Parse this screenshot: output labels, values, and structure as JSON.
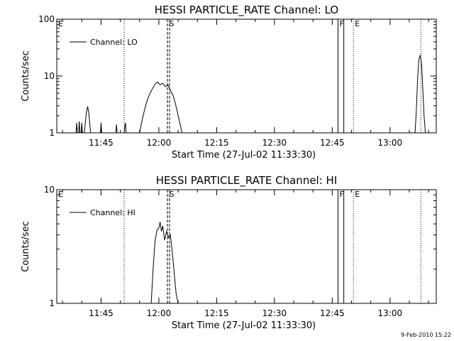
{
  "footer": {
    "timestamp": "9-Feb-2010 15:22"
  },
  "chart_data": [
    {
      "type": "line",
      "title": "HESSI PARTICLE_RATE Channel: LO",
      "xlabel": "Start Time (27-Jul-02 11:33:30)",
      "ylabel": "Counts/sec",
      "yscale": "log",
      "xlim": [
        "11:33:30",
        "13:12:00"
      ],
      "ylim": [
        1,
        100
      ],
      "xticks": [
        "11:45",
        "12:00",
        "12:15",
        "12:30",
        "12:45",
        "13:00"
      ],
      "yticks": [
        "1",
        "10",
        "100"
      ],
      "legend": {
        "label": "Channel: LO",
        "position": "top-left"
      },
      "markers": [
        {
          "label": "E",
          "time": "11:33:30",
          "style": "dotted"
        },
        {
          "label": "",
          "time": "11:51:00",
          "style": "dotted"
        },
        {
          "label": "S",
          "time": "12:02:30",
          "style": "dashed"
        },
        {
          "label": "F",
          "time": "12:46:30",
          "style": "solid"
        },
        {
          "label": "",
          "time": "12:48:00",
          "style": "solid"
        },
        {
          "label": "E",
          "time": "12:50:30",
          "style": "dotted"
        },
        {
          "label": "",
          "time": "13:08:00",
          "style": "dotted"
        }
      ],
      "series": [
        {
          "name": "Channel: LO",
          "values": [
            [
              "11:38:30",
              1
            ],
            [
              "11:38:40",
              1.5
            ],
            [
              "11:38:50",
              1
            ],
            [
              "11:39:10",
              1
            ],
            [
              "11:39:20",
              1.6
            ],
            [
              "11:39:30",
              1
            ],
            [
              "11:39:50",
              1
            ],
            [
              "11:40:00",
              1.5
            ],
            [
              "11:40:10",
              1
            ],
            [
              "11:40:40",
              1
            ],
            [
              "11:41:10",
              2.2
            ],
            [
              "11:41:30",
              2.9
            ],
            [
              "11:41:50",
              2.2
            ],
            [
              "11:42:10",
              1.2
            ],
            [
              "11:42:20",
              1
            ],
            [
              "11:44:50",
              1
            ],
            [
              "11:45:00",
              1.5
            ],
            [
              "11:45:10",
              1
            ],
            [
              "11:48:50",
              1
            ],
            [
              "11:49:00",
              1.4
            ],
            [
              "11:49:10",
              1
            ],
            [
              "11:51:00",
              1
            ],
            [
              "11:51:10",
              1.3
            ],
            [
              "11:51:20",
              1.5
            ],
            [
              "11:51:30",
              1
            ],
            [
              "11:55:00",
              1
            ],
            [
              "11:55:40",
              1.7
            ],
            [
              "11:56:20",
              2.6
            ],
            [
              "11:57:00",
              3.8
            ],
            [
              "11:57:40",
              4.9
            ],
            [
              "11:58:20",
              6.0
            ],
            [
              "11:59:00",
              7.2
            ],
            [
              "11:59:40",
              7.8
            ],
            [
              "12:00:20",
              7.0
            ],
            [
              "12:01:00",
              7.5
            ],
            [
              "12:01:40",
              6.5
            ],
            [
              "12:02:20",
              7.0
            ],
            [
              "12:03:00",
              5.6
            ],
            [
              "12:03:40",
              4.6
            ],
            [
              "12:04:20",
              3.2
            ],
            [
              "12:05:00",
              2.0
            ],
            [
              "12:05:40",
              1.3
            ],
            [
              "12:06:00",
              1
            ],
            [
              "13:06:30",
              1
            ],
            [
              "13:06:50",
              2.5
            ],
            [
              "13:07:10",
              9.0
            ],
            [
              "13:07:30",
              20
            ],
            [
              "13:07:50",
              23
            ],
            [
              "13:08:10",
              17
            ],
            [
              "13:08:30",
              6.0
            ],
            [
              "13:08:50",
              2.0
            ],
            [
              "13:09:10",
              1
            ]
          ]
        }
      ]
    },
    {
      "type": "line",
      "title": "HESSI PARTICLE_RATE Channel: HI",
      "xlabel": "Start Time (27-Jul-02 11:33:30)",
      "ylabel": "Counts/sec",
      "yscale": "log",
      "xlim": [
        "11:33:30",
        "13:12:00"
      ],
      "ylim": [
        1,
        10
      ],
      "xticks": [
        "11:45",
        "12:00",
        "12:15",
        "12:30",
        "12:45",
        "13:00"
      ],
      "yticks": [
        "1",
        "10"
      ],
      "legend": {
        "label": "Channel: HI",
        "position": "top-left"
      },
      "markers": [
        {
          "label": "E",
          "time": "11:33:30",
          "style": "dotted"
        },
        {
          "label": "",
          "time": "11:51:00",
          "style": "dotted"
        },
        {
          "label": "S",
          "time": "12:02:30",
          "style": "dashed"
        },
        {
          "label": "F",
          "time": "12:46:30",
          "style": "solid"
        },
        {
          "label": "",
          "time": "12:48:00",
          "style": "solid"
        },
        {
          "label": "E",
          "time": "12:50:30",
          "style": "dotted"
        },
        {
          "label": "",
          "time": "13:08:00",
          "style": "dotted"
        }
      ],
      "series": [
        {
          "name": "Channel: HI",
          "values": [
            [
              "11:58:00",
              1
            ],
            [
              "11:58:30",
              2.0
            ],
            [
              "11:59:00",
              3.5
            ],
            [
              "11:59:30",
              4.4
            ],
            [
              "12:00:00",
              4.6
            ],
            [
              "12:00:20",
              5.2
            ],
            [
              "12:00:40",
              4.3
            ],
            [
              "12:01:00",
              4.8
            ],
            [
              "12:01:30",
              3.6
            ],
            [
              "12:02:00",
              4.3
            ],
            [
              "12:02:30",
              3.8
            ],
            [
              "12:03:00",
              4.0
            ],
            [
              "12:03:30",
              2.8
            ],
            [
              "12:04:00",
              1.8
            ],
            [
              "12:04:30",
              1.2
            ],
            [
              "12:05:00",
              1
            ]
          ]
        }
      ]
    }
  ]
}
